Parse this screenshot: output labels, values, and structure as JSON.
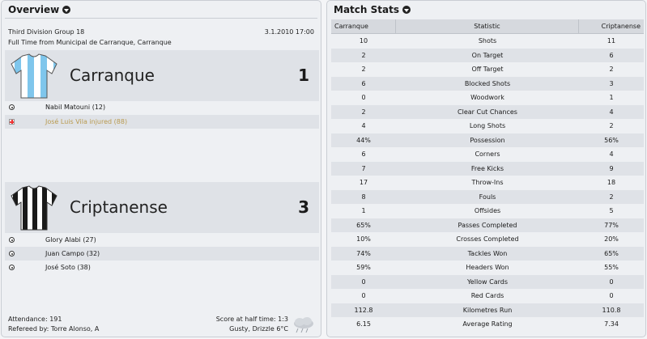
{
  "overview": {
    "title": "Overview",
    "competition": "Third Division Group 18",
    "date": "3.1.2010 17:00",
    "venue": "Full Time from Municipal de Carranque, Carranque",
    "home": {
      "name": "Carranque",
      "score": "1",
      "kit_colors": [
        "#7fc6ec",
        "#ffffff"
      ],
      "events": [
        {
          "icon": "ball-icon",
          "text": "Nabil Matouni (12)",
          "color": "#1a1a1a"
        },
        {
          "icon": "injury-icon",
          "text": "José Luis Vila injured (88)",
          "color": "#b99a4f"
        }
      ]
    },
    "away": {
      "name": "Criptanense",
      "score": "3",
      "kit_colors": [
        "#1a1a1a",
        "#ffffff"
      ],
      "events": [
        {
          "icon": "ball-icon",
          "text": "Glory Alabi (27)",
          "color": "#1a1a1a"
        },
        {
          "icon": "ball-icon",
          "text": "Juan Campo (32)",
          "color": "#1a1a1a"
        },
        {
          "icon": "ball-icon",
          "text": "José Soto (38)",
          "color": "#1a1a1a"
        }
      ]
    },
    "attendance": "Attendance: 191",
    "referee": "Refereed by: Torre Alonso, A",
    "halftime": "Score at half time: 1:3",
    "weather": "Gusty, Drizzle 6°C"
  },
  "match_stats": {
    "title": "Match Stats",
    "headers": [
      "Carranque",
      "Statistic",
      "Criptanense"
    ],
    "rows": [
      [
        "10",
        "Shots",
        "11"
      ],
      [
        "2",
        "On Target",
        "6"
      ],
      [
        "2",
        "Off Target",
        "2"
      ],
      [
        "6",
        "Blocked Shots",
        "3"
      ],
      [
        "0",
        "Woodwork",
        "1"
      ],
      [
        "2",
        "Clear Cut Chances",
        "4"
      ],
      [
        "4",
        "Long Shots",
        "2"
      ],
      [
        "44%",
        "Possession",
        "56%"
      ],
      [
        "6",
        "Corners",
        "4"
      ],
      [
        "7",
        "Free Kicks",
        "9"
      ],
      [
        "17",
        "Throw-Ins",
        "18"
      ],
      [
        "8",
        "Fouls",
        "2"
      ],
      [
        "1",
        "Offsides",
        "5"
      ],
      [
        "65%",
        "Passes Completed",
        "77%"
      ],
      [
        "10%",
        "Crosses Completed",
        "20%"
      ],
      [
        "74%",
        "Tackles Won",
        "65%"
      ],
      [
        "59%",
        "Headers Won",
        "55%"
      ],
      [
        "0",
        "Yellow Cards",
        "0"
      ],
      [
        "0",
        "Red Cards",
        "0"
      ],
      [
        "112.8",
        "Kilometres Run",
        "110.8"
      ],
      [
        "6.15",
        "Average Rating",
        "7.34"
      ]
    ]
  }
}
